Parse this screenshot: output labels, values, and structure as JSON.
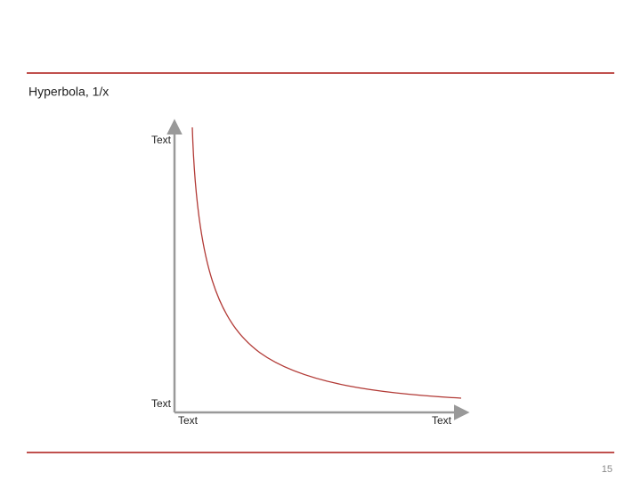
{
  "slide": {
    "title": "Hyperbola, 1/x",
    "diagram": {
      "y_axis_top_label": "Text",
      "y_axis_bottom_label": "Text",
      "x_axis_left_label": "Text",
      "x_axis_right_label": "Text"
    },
    "page_number": "15"
  }
}
